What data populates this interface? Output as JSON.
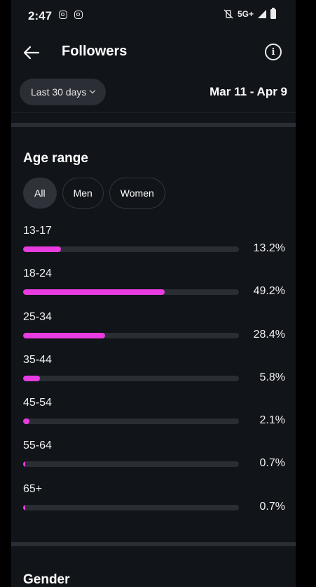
{
  "status_bar": {
    "time": "2:47",
    "network": "5G+"
  },
  "header": {
    "title": "Followers"
  },
  "filters": {
    "period_label": "Last 30 days",
    "date_range": "Mar 11 - Apr 9"
  },
  "age_section": {
    "title": "Age range",
    "chips": [
      {
        "label": "All",
        "selected": true
      },
      {
        "label": "Men",
        "selected": false
      },
      {
        "label": "Women",
        "selected": false
      }
    ],
    "bar_color": "#e83ce0",
    "track_color": "#2a2d33",
    "rows": [
      {
        "label": "13-17",
        "value": 13.2,
        "display": "13.2%"
      },
      {
        "label": "18-24",
        "value": 49.2,
        "display": "49.2%"
      },
      {
        "label": "25-34",
        "value": 28.4,
        "display": "28.4%"
      },
      {
        "label": "35-44",
        "value": 5.8,
        "display": "5.8%"
      },
      {
        "label": "45-54",
        "value": 2.1,
        "display": "2.1%"
      },
      {
        "label": "55-64",
        "value": 0.7,
        "display": "0.7%"
      },
      {
        "label": "65+",
        "value": 0.7,
        "display": "0.7%"
      }
    ]
  },
  "gender_section": {
    "title": "Gender"
  }
}
